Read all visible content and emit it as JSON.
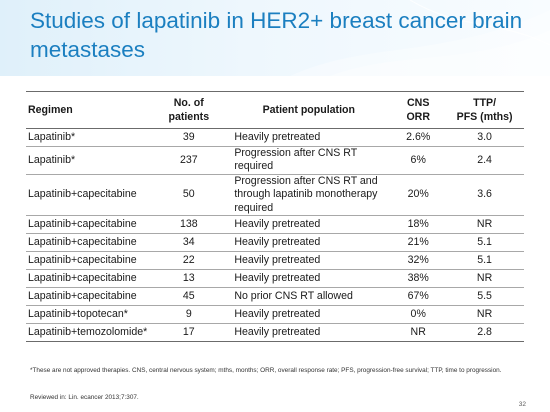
{
  "slide": {
    "title": "Studies of lapatinib in HER2+ breast cancer brain metastases",
    "page_number": "32"
  },
  "table": {
    "headers": {
      "regimen": "Regimen",
      "patients_line1": "No. of",
      "patients_line2": "patients",
      "population": "Patient population",
      "orr_line1": "CNS",
      "orr_line2": "ORR",
      "ttp_line1": "TTP/",
      "ttp_line2": "PFS (mths)"
    },
    "rows": [
      {
        "regimen": "Lapatinib*",
        "patients": "39",
        "population": "Heavily pretreated",
        "cns_orr": "2.6%",
        "ttp_pfs": "3.0"
      },
      {
        "regimen": "Lapatinib*",
        "patients": "237",
        "population": "Progression after CNS RT required",
        "cns_orr": "6%",
        "ttp_pfs": "2.4"
      },
      {
        "regimen": "Lapatinib+capecitabine",
        "patients": "50",
        "population": "Progression after CNS RT and through lapatinib monotherapy required",
        "cns_orr": "20%",
        "ttp_pfs": "3.6"
      },
      {
        "regimen": "Lapatinib+capecitabine",
        "patients": "138",
        "population": "Heavily pretreated",
        "cns_orr": "18%",
        "ttp_pfs": "NR"
      },
      {
        "regimen": "Lapatinib+capecitabine",
        "patients": "34",
        "population": "Heavily pretreated",
        "cns_orr": "21%",
        "ttp_pfs": "5.1"
      },
      {
        "regimen": "Lapatinib+capecitabine",
        "patients": "22",
        "population": "Heavily pretreated",
        "cns_orr": "32%",
        "ttp_pfs": "5.1"
      },
      {
        "regimen": "Lapatinib+capecitabine",
        "patients": "13",
        "population": "Heavily pretreated",
        "cns_orr": "38%",
        "ttp_pfs": "NR"
      },
      {
        "regimen": "Lapatinib+capecitabine",
        "patients": "45",
        "population": "No prior CNS RT allowed",
        "cns_orr": "67%",
        "ttp_pfs": "5.5"
      },
      {
        "regimen": "Lapatinib+topotecan*",
        "patients": "9",
        "population": "Heavily pretreated",
        "cns_orr": "0%",
        "ttp_pfs": "NR"
      },
      {
        "regimen": "Lapatinib+temozolomide*",
        "patients": "17",
        "population": "Heavily pretreated",
        "cns_orr": "NR",
        "ttp_pfs": "2.8"
      }
    ]
  },
  "footnote": "*These are not approved therapies. CNS, central nervous system; mths, months; ORR, overall response rate; PFS, progression-free survival; TTP, time to progression.",
  "reference": "Reviewed in: Lin. ecancer 2013;7:307.",
  "colors": {
    "title": "#1b7fc0",
    "title_band": "#dff0fa"
  }
}
